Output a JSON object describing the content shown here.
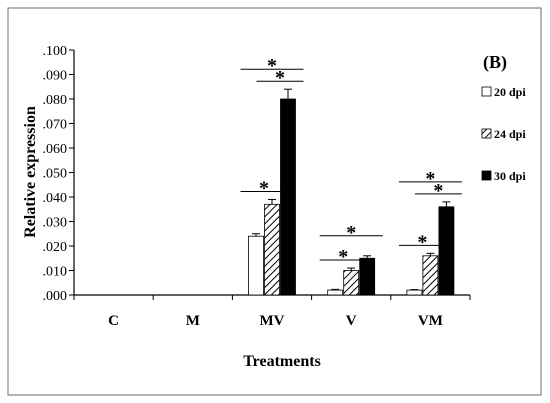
{
  "chart_data": {
    "type": "bar",
    "panel_label": "(B)",
    "xlabel": "Treatments",
    "ylabel": "Relative expression",
    "ylim": [
      0,
      0.1
    ],
    "yticks": [
      0,
      0.01,
      0.02,
      0.03,
      0.04,
      0.05,
      0.06,
      0.07,
      0.08,
      0.09,
      0.1
    ],
    "ytick_labels": [
      ".000",
      ".010",
      ".020",
      ".030",
      ".040",
      ".050",
      ".060",
      ".070",
      ".080",
      ".090",
      ".100"
    ],
    "categories": [
      "C",
      "M",
      "MV",
      "V",
      "VM"
    ],
    "series": [
      {
        "name": "20 dpi",
        "values": [
          0,
          0,
          0.024,
          0.002,
          0.002
        ],
        "errors": [
          0,
          0,
          0.001,
          0.0003,
          0.0002
        ],
        "fill": "white"
      },
      {
        "name": "24 dpi",
        "values": [
          0,
          0,
          0.037,
          0.01,
          0.016
        ],
        "errors": [
          0,
          0,
          0.002,
          0.001,
          0.001
        ],
        "fill": "hatched"
      },
      {
        "name": "30 dpi",
        "values": [
          0,
          0,
          0.08,
          0.015,
          0.036
        ],
        "errors": [
          0,
          0,
          0.004,
          0.001,
          0.002
        ],
        "fill": "black"
      }
    ],
    "significance": [
      {
        "category": "MV",
        "from": "20 dpi",
        "to": "24 dpi",
        "label": "*"
      },
      {
        "category": "MV",
        "from": "24 dpi",
        "to": "30 dpi",
        "label": "*"
      },
      {
        "category": "MV",
        "from": "20 dpi",
        "to": "30 dpi",
        "label": "*"
      },
      {
        "category": "V",
        "from": "20 dpi",
        "to": "24 dpi",
        "label": "*"
      },
      {
        "category": "V",
        "from": "20 dpi",
        "to": "30 dpi",
        "label": "*"
      },
      {
        "category": "VM",
        "from": "20 dpi",
        "to": "24 dpi",
        "label": "*"
      },
      {
        "category": "VM",
        "from": "24 dpi",
        "to": "30 dpi",
        "label": "*"
      },
      {
        "category": "VM",
        "from": "20 dpi",
        "to": "30 dpi",
        "label": "*"
      }
    ],
    "legend_position": "right",
    "grid": false
  }
}
